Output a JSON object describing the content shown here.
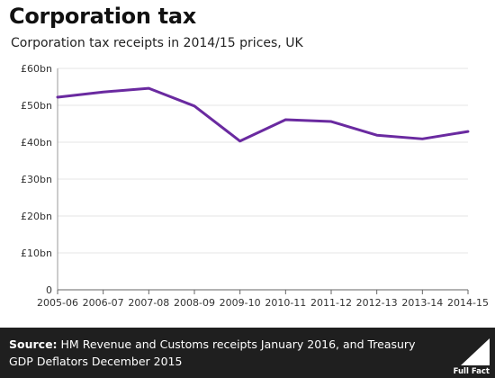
{
  "header": {
    "title": "Corporation tax",
    "subtitle": "Corporation tax receipts in 2014/15 prices, UK"
  },
  "footer": {
    "source_label": "Source:",
    "source_text": "HM Revenue and Customs receipts January 2016, and Treasury GDP Deflators December 2015",
    "logo_text": "Full Fact"
  },
  "colors": {
    "line": "#6a2aa0",
    "footer_bg": "#1f1f1f",
    "grid": "#e5e5e5"
  },
  "chart_data": {
    "type": "line",
    "title": "Corporation tax",
    "subtitle": "Corporation tax receipts in 2014/15 prices, UK",
    "categories": [
      "2005-06",
      "2006-07",
      "2007-08",
      "2008-09",
      "2009-10",
      "2010-11",
      "2011-12",
      "2012-13",
      "2013-14",
      "2014-15"
    ],
    "series": [
      {
        "values": [
          52.2,
          53.6,
          54.6,
          49.8,
          40.3,
          46.1,
          45.6,
          41.9,
          40.9,
          42.9
        ]
      }
    ],
    "ylim": [
      0,
      60
    ],
    "yticks": [
      0,
      10,
      20,
      30,
      40,
      50,
      60
    ],
    "ytick_labels": [
      "0",
      "£10bn",
      "£20bn",
      "£30bn",
      "£40bn",
      "£50bn",
      "£60bn"
    ],
    "xlabel": "",
    "ylabel": "",
    "grid": true
  }
}
